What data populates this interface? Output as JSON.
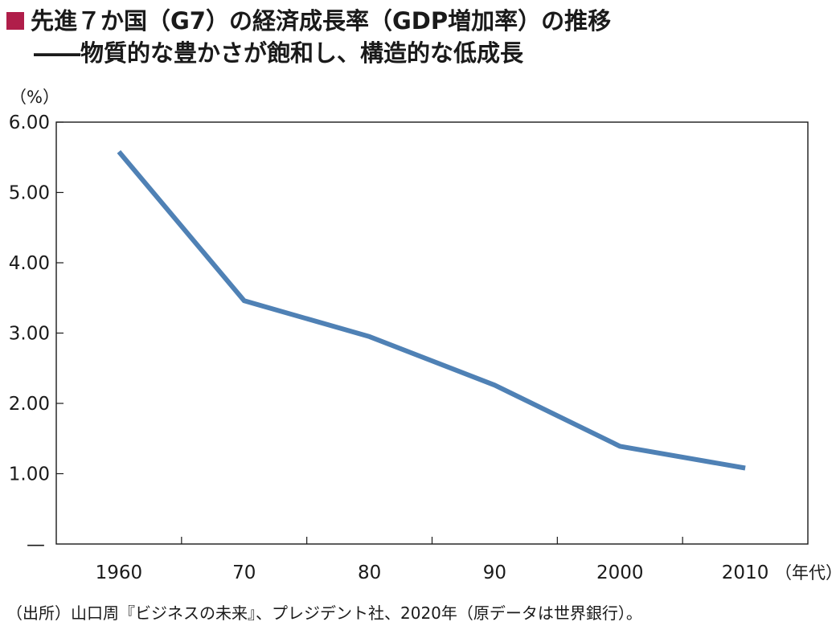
{
  "title": "先進７か国（G7）の経済成長率（GDP増加率）の推移",
  "subtitle": "――物質的な豊かさが飽和し、構造的な低成長",
  "source": "（出所）山口周『ビジネスの未来』、プレジデント社、2020年（原データは世界銀行）。",
  "colors": {
    "accent_marker": "#b01e4a",
    "line": "#4f81b5",
    "axis": "#1a1a1a"
  },
  "chart_data": {
    "type": "line",
    "categories": [
      "1960",
      "70",
      "80",
      "90",
      "2000",
      "2010"
    ],
    "x_unit": "（年代）",
    "y_unit": "（%）",
    "y_ticks": [
      "1.00",
      "2.00",
      "3.00",
      "4.00",
      "5.00",
      "6.00"
    ],
    "y_zero_tick": "—",
    "ylim": [
      0,
      6
    ],
    "series": [
      {
        "values": [
          5.58,
          3.46,
          2.95,
          2.26,
          1.39,
          1.08
        ]
      }
    ],
    "grid": false,
    "legend": "none"
  }
}
